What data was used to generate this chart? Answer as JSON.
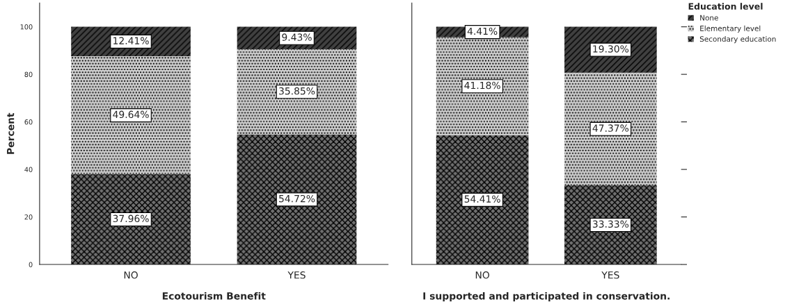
{
  "chart_data": [
    {
      "type": "bar",
      "stacked": true,
      "xlabel": "Ecotourism Benefit",
      "ylabel": "Percent",
      "categories": [
        "NO",
        "YES"
      ],
      "ylim": [
        0,
        110
      ],
      "yticks": [
        0,
        20,
        40,
        60,
        80,
        100
      ],
      "grid": false,
      "legend": "top right",
      "legend_title": "Education level",
      "series": [
        {
          "name": "Secondary education",
          "color": "#707070",
          "values": [
            37.96,
            54.72
          ],
          "value_labels": [
            "37.96%",
            "54.72%"
          ]
        },
        {
          "name": "Elementary level",
          "color": "#d0d0d0",
          "values": [
            49.64,
            35.85
          ],
          "value_labels": [
            "49.64%",
            "35.85%"
          ]
        },
        {
          "name": "None",
          "color": "#404040",
          "values": [
            12.41,
            9.43
          ],
          "value_labels": [
            "12.41%",
            "9.43%"
          ]
        }
      ]
    },
    {
      "type": "bar",
      "stacked": true,
      "xlabel": "I supported and participated in conservation.",
      "categories": [
        "NO",
        "YES"
      ],
      "ylim": [
        0,
        110
      ],
      "yticks": [
        0,
        20,
        40,
        60,
        80,
        100
      ],
      "tick_labels": "x",
      "grid": false,
      "series": [
        {
          "color": "#707070",
          "values": [
            54.41,
            33.33
          ],
          "value_labels": [
            "54.41%",
            "33.33%"
          ]
        },
        {
          "color": "#d0d0d0",
          "values": [
            41.18,
            47.37
          ],
          "value_labels": [
            "41.18%",
            "47.37%"
          ]
        },
        {
          "color": "#404040",
          "values": [
            4.41,
            19.3
          ],
          "value_labels": [
            "4.41%",
            "19.30%"
          ]
        }
      ]
    }
  ]
}
